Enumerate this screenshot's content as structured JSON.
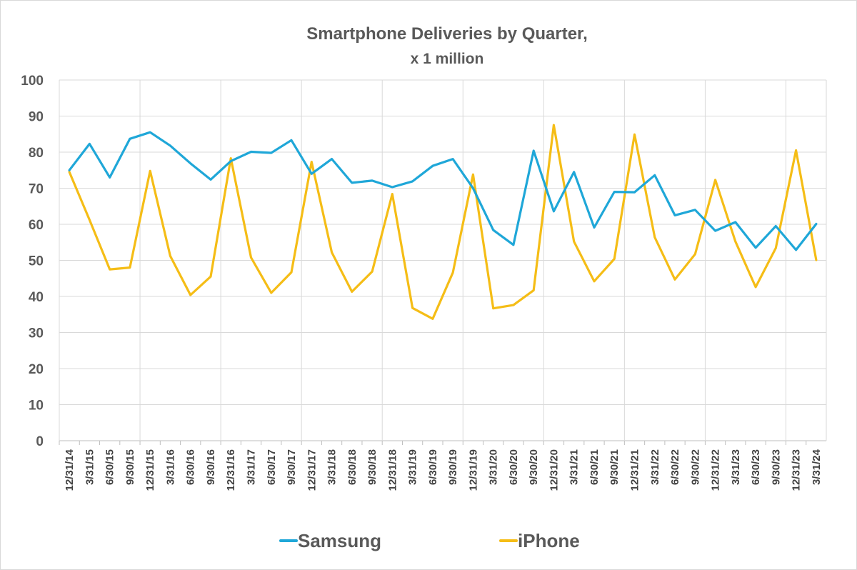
{
  "chart_data": {
    "type": "line",
    "title": "Smartphone Deliveries by Quarter,",
    "subtitle": "x 1 million",
    "xlabel": "",
    "ylabel": "",
    "ylim": [
      0,
      100
    ],
    "yticks": [
      0,
      10,
      20,
      30,
      40,
      50,
      60,
      70,
      80,
      90,
      100
    ],
    "grid": true,
    "legend_position": "bottom",
    "categories": [
      "12/31/14",
      "3/31/15",
      "6/30/15",
      "9/30/15",
      "12/31/15",
      "3/31/16",
      "6/30/16",
      "9/30/16",
      "12/31/16",
      "3/31/17",
      "6/30/17",
      "9/30/17",
      "12/31/17",
      "3/31/18",
      "6/30/18",
      "9/30/18",
      "12/31/18",
      "3/31/19",
      "6/30/19",
      "9/30/19",
      "12/31/19",
      "3/31/20",
      "6/30/20",
      "9/30/20",
      "12/31/20",
      "3/31/21",
      "6/30/21",
      "9/30/21",
      "12/31/21",
      "3/31/22",
      "6/30/22",
      "9/30/22",
      "12/31/22",
      "3/31/23",
      "6/30/23",
      "9/30/23",
      "12/31/23",
      "3/31/24"
    ],
    "series": [
      {
        "name": "Samsung",
        "color": "#1fa7d8",
        "values": [
          75,
          82.3,
          73,
          83.7,
          85.5,
          81.8,
          76.9,
          72.4,
          77.5,
          80.1,
          79.8,
          83.3,
          74.0,
          78.1,
          71.5,
          72.1,
          70.3,
          71.9,
          76.2,
          78.1,
          70.0,
          58.4,
          54.3,
          80.4,
          63.6,
          74.5,
          59.1,
          69.0,
          68.9,
          73.6,
          62.5,
          64.0,
          58.2,
          60.6,
          53.5,
          59.5,
          52.9,
          60.1
        ]
      },
      {
        "name": "iPhone",
        "color": "#f5bd16",
        "values": [
          74.5,
          61.2,
          47.5,
          48.0,
          74.8,
          51.2,
          40.4,
          45.5,
          78.3,
          50.8,
          41.0,
          46.7,
          77.3,
          52.2,
          41.3,
          46.9,
          68.4,
          36.8,
          33.8,
          46.6,
          73.8,
          36.7,
          37.6,
          41.7,
          87.5,
          55.2,
          44.2,
          50.4,
          84.9,
          56.4,
          44.7,
          51.7,
          72.3,
          55.2,
          42.6,
          53.4,
          80.5,
          50.1
        ]
      }
    ]
  }
}
